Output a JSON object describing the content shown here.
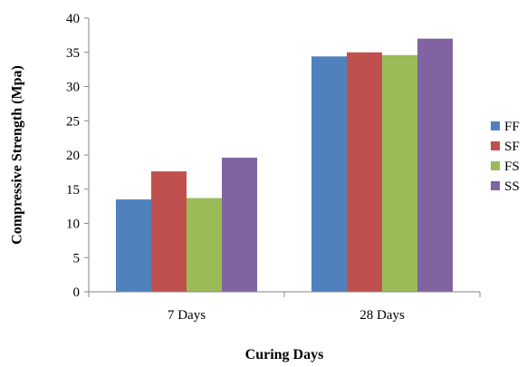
{
  "chart_data": {
    "type": "bar",
    "title": "",
    "xlabel": "Curing Days",
    "ylabel": "Compressive Strength (Mpa)",
    "categories": [
      "7 Days",
      "28 Days"
    ],
    "ylim": [
      0,
      40
    ],
    "yticks": [
      0,
      5,
      10,
      15,
      20,
      25,
      30,
      35,
      40
    ],
    "grid": false,
    "legend_position": "right",
    "series": [
      {
        "name": "FF",
        "color": "#4f81bd",
        "values": [
          13.5,
          34.4
        ]
      },
      {
        "name": "SF",
        "color": "#c0504d",
        "values": [
          17.6,
          35.0
        ]
      },
      {
        "name": "FS",
        "color": "#9bbb59",
        "values": [
          13.7,
          34.6
        ]
      },
      {
        "name": "SS",
        "color": "#8064a2",
        "values": [
          19.6,
          37.0
        ]
      }
    ]
  }
}
